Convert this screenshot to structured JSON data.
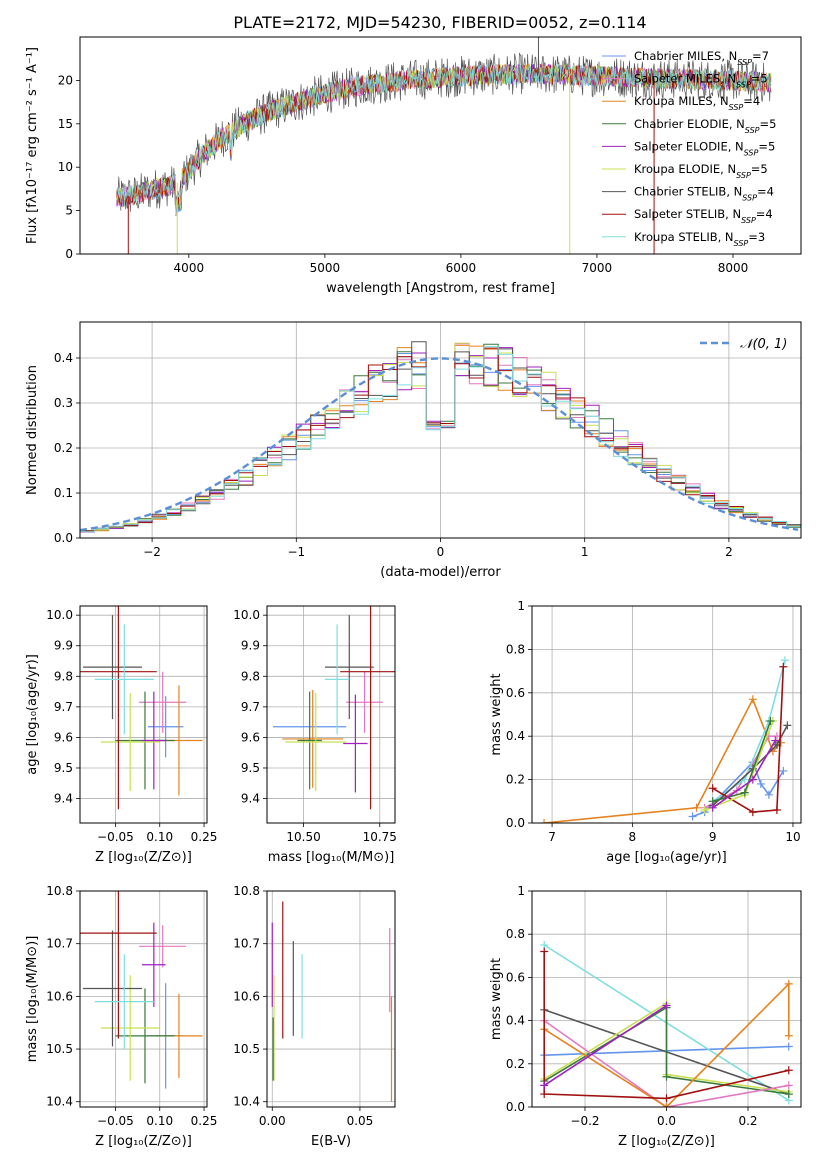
{
  "title": "PLATE=2172, MJD=54230, FIBERID=0052, z=0.114",
  "colors": {
    "chabrier_miles": "#6495ed",
    "salpeter_miles": "#e377c2",
    "kroupa_miles": "#e5821f",
    "chabrier_elodie": "#3a7a3a",
    "salpeter_elodie": "#a020c0",
    "kroupa_elodie": "#c8e050",
    "chabrier_stelib": "#555555",
    "salpeter_stelib": "#a01010",
    "kroupa_stelib": "#80dede",
    "gauss": "#5b8fd6"
  },
  "chart_data": [
    {
      "id": "spectrum",
      "type": "line",
      "xlabel": "wavelength [Angstrom, rest frame]",
      "ylabel": "Flux [fλ10⁻¹⁷ erg cm⁻² s⁻¹ A⁻¹]",
      "xlim": [
        3200,
        8500
      ],
      "ylim": [
        0,
        25
      ],
      "xticks": [
        4000,
        5000,
        6000,
        7000,
        8000
      ],
      "yticks": [
        0,
        5,
        10,
        15,
        20
      ],
      "legend_position": "top-right",
      "legend": [
        "Chabrier MILES, N_SSP=7",
        "Salpeter MILES, N_SSP=5",
        "Kroupa MILES, N_SSP=4",
        "Chabrier ELODIE, N_SSP=5",
        "Salpeter ELODIE, N_SSP=5",
        "Kroupa ELODIE, N_SSP=5",
        "Chabrier STELIB, N_SSP=4",
        "Salpeter STELIB, N_SSP=4",
        "Kroupa STELIB, N_SSP=3"
      ],
      "continuum": [
        [
          3470,
          6.5
        ],
        [
          3600,
          6.8
        ],
        [
          3750,
          7.5
        ],
        [
          3900,
          8.0
        ],
        [
          4000,
          9.5
        ],
        [
          4100,
          11.5
        ],
        [
          4250,
          13.5
        ],
        [
          4400,
          15.0
        ],
        [
          4600,
          16.5
        ],
        [
          4800,
          17.5
        ],
        [
          5000,
          18.5
        ],
        [
          5300,
          19.5
        ],
        [
          5600,
          20.0
        ],
        [
          6000,
          20.5
        ],
        [
          6500,
          20.8
        ],
        [
          7000,
          20.5
        ],
        [
          7500,
          20.2
        ],
        [
          8000,
          20.0
        ],
        [
          8280,
          19.7
        ]
      ]
    },
    {
      "id": "residuals",
      "type": "histogram",
      "xlabel": "(data-model)/error",
      "ylabel": "Normed distribution",
      "xlim": [
        -2.5,
        2.5
      ],
      "ylim": [
        0,
        0.48
      ],
      "xticks": [
        -2,
        -1,
        0,
        1,
        2
      ],
      "yticks": [
        0.0,
        0.1,
        0.2,
        0.3,
        0.4
      ],
      "grid": true,
      "legend_position": "top-right",
      "legend": [
        "N(0,1)"
      ],
      "legend_math": "𝒩(0, 1)"
    },
    {
      "id": "age_vs_Z",
      "type": "errorbar",
      "xlabel": "Z [log₁₀(Z/Z⊙)]",
      "ylabel": "age  [log₁₀(age/yr)]",
      "xlim": [
        -0.17,
        0.26
      ],
      "ylim": [
        9.32,
        10.03
      ],
      "xticks": [
        -0.05,
        0.1,
        0.25
      ],
      "xticklabels": [
        "−0.05",
        "0.10",
        "0.25"
      ],
      "yticks": [
        9.4,
        9.5,
        9.6,
        9.7,
        9.8,
        9.9,
        10.0
      ],
      "yticklabels": [
        "9.4",
        "9.5",
        "9.6",
        "9.7",
        "9.8",
        "9.9",
        "10.0"
      ],
      "grid": true,
      "points": [
        {
          "c": "chabrier_miles",
          "x": 0.12,
          "xerr": 0.06,
          "y": 9.635,
          "yerr": 0.1
        },
        {
          "c": "salpeter_miles",
          "x": 0.11,
          "xerr": 0.08,
          "y": 9.715,
          "yerr": 0.1
        },
        {
          "c": "kroupa_miles",
          "x": 0.165,
          "xerr": 0.08,
          "y": 9.59,
          "yerr": 0.18
        },
        {
          "c": "chabrier_elodie",
          "x": 0.05,
          "xerr": 0.1,
          "y": 9.59,
          "yerr": 0.16
        },
        {
          "c": "salpeter_elodie",
          "x": 0.08,
          "xerr": 0.04,
          "y": 9.59,
          "yerr": 0.16
        },
        {
          "c": "kroupa_elodie",
          "x": 0.0,
          "xerr": 0.1,
          "y": 9.585,
          "yerr": 0.16
        },
        {
          "c": "chabrier_stelib",
          "x": -0.06,
          "xerr": 0.1,
          "y": 9.83,
          "yerr": 0.17
        },
        {
          "c": "salpeter_stelib",
          "x": -0.04,
          "xerr": 0.13,
          "y": 9.815,
          "yerr": 0.45
        },
        {
          "c": "kroupa_stelib",
          "x": -0.02,
          "xerr": 0.1,
          "y": 9.79,
          "yerr": 0.18
        }
      ]
    },
    {
      "id": "age_vs_mass",
      "type": "errorbar",
      "xlabel": "mass [log₁₀(M/M⊙)]",
      "xlim": [
        10.38,
        10.8
      ],
      "ylim": [
        9.32,
        10.03
      ],
      "xticks": [
        10.5,
        10.75
      ],
      "xticklabels": [
        "10.50",
        "10.75"
      ],
      "yticks": [
        9.4,
        9.5,
        9.6,
        9.7,
        9.8,
        9.9,
        10.0
      ],
      "yticklabels": [
        "9.4",
        "9.5",
        "9.6",
        "9.7",
        "9.8",
        "9.9",
        "10.0"
      ],
      "grid": true,
      "points": [
        {
          "c": "chabrier_miles",
          "x": 10.52,
          "xerr": 0.12,
          "y": 9.635,
          "yerr": 0.0
        },
        {
          "c": "salpeter_miles",
          "x": 10.7,
          "xerr": 0.06,
          "y": 9.715,
          "yerr": 0.1
        },
        {
          "c": "kroupa_miles",
          "x": 10.53,
          "xerr": 0.1,
          "y": 9.595,
          "yerr": 0.16
        },
        {
          "c": "chabrier_elodie",
          "x": 10.52,
          "xerr": 0.04,
          "y": 9.59,
          "yerr": 0.16
        },
        {
          "c": "salpeter_elodie",
          "x": 10.67,
          "xerr": 0.04,
          "y": 9.58,
          "yerr": 0.16
        },
        {
          "c": "kroupa_elodie",
          "x": 10.54,
          "xerr": 0.1,
          "y": 9.585,
          "yerr": 0.16
        },
        {
          "c": "chabrier_stelib",
          "x": 10.65,
          "xerr": 0.08,
          "y": 9.83,
          "yerr": 0.17
        },
        {
          "c": "salpeter_stelib",
          "x": 10.72,
          "xerr": 0.1,
          "y": 9.815,
          "yerr": 0.45
        },
        {
          "c": "kroupa_stelib",
          "x": 10.61,
          "xerr": 0.04,
          "y": 9.79,
          "yerr": 0.18
        }
      ]
    },
    {
      "id": "weight_vs_age",
      "type": "line",
      "xlabel": "age  [log₁₀(age/yr)]",
      "ylabel": "mass weight",
      "xlim": [
        6.75,
        10.1
      ],
      "ylim": [
        0,
        1
      ],
      "xticks": [
        7,
        8,
        9,
        10
      ],
      "yticks": [
        0.0,
        0.2,
        0.4,
        0.6,
        0.8,
        1.0
      ],
      "grid": true,
      "series": [
        {
          "c": "kroupa_miles",
          "points": [
            [
              6.9,
              0.0
            ],
            [
              8.8,
              0.07
            ],
            [
              9.5,
              0.57
            ],
            [
              9.75,
              0.33
            ],
            [
              9.85,
              0.37
            ]
          ]
        },
        {
          "c": "chabrier_miles",
          "points": [
            [
              8.75,
              0.03
            ],
            [
              8.9,
              0.05
            ],
            [
              9.5,
              0.28
            ],
            [
              9.6,
              0.18
            ],
            [
              9.7,
              0.13
            ],
            [
              9.88,
              0.24
            ]
          ]
        },
        {
          "c": "salpeter_miles",
          "points": [
            [
              8.9,
              0.07
            ],
            [
              9.3,
              0.15
            ],
            [
              9.7,
              0.4
            ],
            [
              9.8,
              0.4
            ]
          ]
        },
        {
          "c": "kroupa_stelib",
          "points": [
            [
              9.0,
              0.1
            ],
            [
              9.4,
              0.2
            ],
            [
              9.7,
              0.47
            ],
            [
              9.9,
              0.75
            ]
          ]
        },
        {
          "c": "chabrier_stelib",
          "points": [
            [
              9.0,
              0.08
            ],
            [
              9.5,
              0.25
            ],
            [
              9.8,
              0.36
            ],
            [
              9.93,
              0.45
            ]
          ]
        },
        {
          "c": "salpeter_stelib",
          "points": [
            [
              9.0,
              0.16
            ],
            [
              9.5,
              0.05
            ],
            [
              9.8,
              0.06
            ],
            [
              9.88,
              0.72
            ]
          ]
        },
        {
          "c": "kroupa_elodie",
          "points": [
            [
              8.9,
              0.06
            ],
            [
              9.4,
              0.13
            ],
            [
              9.75,
              0.47
            ]
          ]
        },
        {
          "c": "chabrier_elodie",
          "points": [
            [
              9.0,
              0.1
            ],
            [
              9.4,
              0.14
            ],
            [
              9.72,
              0.47
            ]
          ]
        },
        {
          "c": "salpeter_elodie",
          "points": [
            [
              9.0,
              0.07
            ],
            [
              9.5,
              0.2
            ],
            [
              9.78,
              0.38
            ]
          ]
        }
      ]
    },
    {
      "id": "mass_vs_Z",
      "type": "errorbar",
      "xlabel": "Z [log₁₀(Z/Z⊙)]",
      "ylabel": "mass [log₁₀(M/M⊙)]",
      "xlim": [
        -0.17,
        0.26
      ],
      "ylim": [
        10.39,
        10.8
      ],
      "xticks": [
        -0.05,
        0.1,
        0.25
      ],
      "xticklabels": [
        "−0.05",
        "0.10",
        "0.25"
      ],
      "yticks": [
        10.4,
        10.5,
        10.6,
        10.7,
        10.8
      ],
      "yticklabels": [
        "10.4",
        "10.5",
        "10.6",
        "10.7",
        "10.8"
      ],
      "grid": true,
      "points": [
        {
          "c": "chabrier_miles",
          "x": 0.12,
          "xerr": 0.06,
          "y": 10.525,
          "yerr": 0.1
        },
        {
          "c": "salpeter_miles",
          "x": 0.11,
          "xerr": 0.08,
          "y": 10.695,
          "yerr": 0.04
        },
        {
          "c": "kroupa_miles",
          "x": 0.165,
          "xerr": 0.08,
          "y": 10.525,
          "yerr": 0.08
        },
        {
          "c": "chabrier_elodie",
          "x": 0.05,
          "xerr": 0.1,
          "y": 10.525,
          "yerr": 0.09
        },
        {
          "c": "salpeter_elodie",
          "x": 0.08,
          "xerr": 0.04,
          "y": 10.66,
          "yerr": 0.08
        },
        {
          "c": "kroupa_elodie",
          "x": 0.0,
          "xerr": 0.1,
          "y": 10.54,
          "yerr": 0.1
        },
        {
          "c": "chabrier_stelib",
          "x": -0.06,
          "xerr": 0.1,
          "y": 10.615,
          "yerr": 0.11
        },
        {
          "c": "salpeter_stelib",
          "x": -0.04,
          "xerr": 0.13,
          "y": 10.72,
          "yerr": 0.2
        },
        {
          "c": "kroupa_stelib",
          "x": -0.02,
          "xerr": 0.1,
          "y": 10.59,
          "yerr": 0.09
        }
      ]
    },
    {
      "id": "mass_vs_ebv",
      "type": "errorbar",
      "xlabel": "E(B-V)",
      "xlim": [
        -0.003,
        0.07
      ],
      "ylim": [
        10.39,
        10.8
      ],
      "xticks": [
        0.0,
        0.05
      ],
      "xticklabels": [
        "0.00",
        "0.05"
      ],
      "yticks": [
        10.4,
        10.5,
        10.6,
        10.7,
        10.8
      ],
      "yticklabels": [
        "10.4",
        "10.5",
        "10.6",
        "10.7",
        "10.8"
      ],
      "grid": true,
      "points": [
        {
          "c": "salpeter_elodie",
          "x": 0.0,
          "xerr": 0,
          "y": 10.66,
          "yerr": 0.08
        },
        {
          "c": "kroupa_elodie",
          "x": 0.001,
          "xerr": 0,
          "y": 10.54,
          "yerr": 0.1
        },
        {
          "c": "chabrier_elodie",
          "x": 0.0005,
          "xerr": 0,
          "y": 10.5,
          "yerr": 0.06
        },
        {
          "c": "salpeter_stelib",
          "x": 0.006,
          "xerr": 0,
          "y": 10.65,
          "yerr": 0.13
        },
        {
          "c": "chabrier_stelib",
          "x": 0.012,
          "xerr": 0,
          "y": 10.615,
          "yerr": 0.09
        },
        {
          "c": "kroupa_stelib",
          "x": 0.017,
          "xerr": 0,
          "y": 10.6,
          "yerr": 0.08
        },
        {
          "c": "salpeter_miles",
          "x": 0.067,
          "xerr": 0,
          "y": 10.65,
          "yerr": 0.08
        },
        {
          "c": "kroupa_miles",
          "x": 0.068,
          "xerr": 0,
          "y": 10.5,
          "yerr": 0.1
        }
      ]
    },
    {
      "id": "weight_vs_Z",
      "type": "line",
      "xlabel": "Z [log₁₀(Z/Z⊙)]",
      "ylabel": "mass weight",
      "xlim": [
        -0.33,
        0.33
      ],
      "ylim": [
        0,
        1
      ],
      "xticks": [
        -0.2,
        0.0,
        0.2
      ],
      "xticklabels": [
        "−0.2",
        "0.0",
        "0.2"
      ],
      "yticks": [
        0.0,
        0.2,
        0.4,
        0.6,
        0.8,
        1.0
      ],
      "grid": true,
      "series": [
        {
          "c": "chabrier_miles",
          "points": [
            [
              -0.3,
              0.24
            ],
            [
              0.3,
              0.28
            ]
          ]
        },
        {
          "c": "kroupa_stelib",
          "points": [
            [
              -0.3,
              0.75
            ],
            [
              0.3,
              0.03
            ]
          ]
        },
        {
          "c": "chabrier_stelib",
          "points": [
            [
              -0.3,
              0.45
            ],
            [
              0.3,
              0.06
            ]
          ]
        },
        {
          "c": "kroupa_elodie",
          "points": [
            [
              -0.3,
              0.13
            ],
            [
              0.0,
              0.48
            ],
            [
              0.0,
              0.15
            ],
            [
              0.3,
              0.07
            ]
          ]
        },
        {
          "c": "chabrier_elodie",
          "points": [
            [
              -0.3,
              0.12
            ],
            [
              0.0,
              0.46
            ],
            [
              0.0,
              0.14
            ],
            [
              0.3,
              0.06
            ]
          ]
        },
        {
          "c": "salpeter_miles",
          "points": [
            [
              -0.3,
              0.4
            ],
            [
              0.0,
              0.0
            ],
            [
              0.3,
              0.1
            ]
          ]
        },
        {
          "c": "kroupa_miles",
          "points": [
            [
              -0.3,
              0.36
            ],
            [
              0.0,
              0.0
            ],
            [
              0.3,
              0.57
            ],
            [
              0.3,
              0.33
            ]
          ]
        },
        {
          "c": "salpeter_stelib",
          "points": [
            [
              -0.3,
              0.72
            ],
            [
              -0.3,
              0.06
            ],
            [
              0.0,
              0.04
            ],
            [
              0.3,
              0.17
            ]
          ]
        },
        {
          "c": "salpeter_elodie",
          "points": [
            [
              -0.3,
              0.1
            ],
            [
              0.0,
              0.47
            ]
          ]
        }
      ]
    }
  ]
}
